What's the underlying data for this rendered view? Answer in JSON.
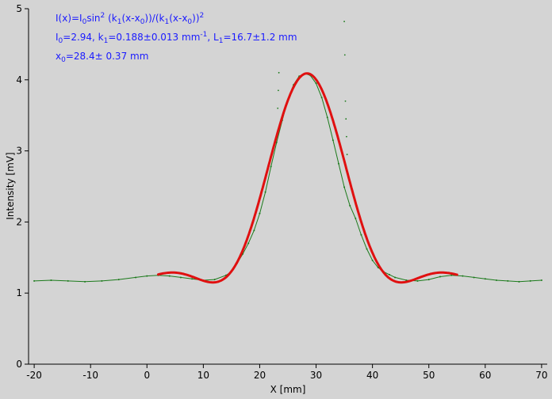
{
  "chart_data": {
    "type": "scatter",
    "title": "",
    "xlabel": "X [mm]",
    "ylabel": "Intensity [mV]",
    "xlim": [
      -21,
      71
    ],
    "ylim": [
      0,
      5
    ],
    "xticks": [
      -20,
      -10,
      0,
      10,
      20,
      30,
      40,
      50,
      60,
      70
    ],
    "yticks": [
      0,
      1,
      2,
      3,
      4,
      5
    ],
    "xtick_labels": [
      "-20",
      "-10",
      "0",
      "10",
      "20",
      "30",
      "40",
      "50",
      "60",
      "70"
    ],
    "ytick_labels": [
      "0",
      "1",
      "2",
      "3",
      "4",
      "5"
    ],
    "grid": false,
    "legend": "none",
    "annotation": {
      "line1": {
        "a": "I(x)=I",
        "a_sub": "0",
        "b": "sin",
        "b_sup": "2",
        "c": " (k",
        "c_sub": "1",
        "d": "(x-x",
        "d_sub": "0",
        "e": "))/(k",
        "e_sub": "1",
        "f": "(x-x",
        "f_sub": "0",
        "g": "))",
        "g_sup": "2"
      },
      "line2": {
        "a": "I",
        "a_sub": "0",
        "b": "=2.94,  k",
        "b_sub": "1",
        "c": "=0.188±0.013 mm",
        "c_sup": "-1",
        "d": ",   L",
        "d_sub": "1",
        "e": "=16.7±1.2 mm"
      },
      "line3": {
        "a": "x",
        "a_sub": "0",
        "b": "=28.4±  0.37 mm"
      }
    },
    "series": [
      {
        "kind": "measured",
        "color": "#1b7a1b",
        "x": [
          -20,
          -17,
          -14,
          -11,
          -8,
          -5,
          -2,
          0,
          2,
          4,
          6,
          8,
          10,
          12,
          14,
          15,
          16,
          17,
          18,
          19,
          20,
          21,
          22,
          23,
          24,
          25,
          26,
          27,
          28,
          29,
          30,
          31,
          32,
          33,
          34,
          35,
          36,
          37,
          38,
          39,
          40,
          41,
          42,
          43,
          44,
          46,
          48,
          50,
          52,
          54,
          56,
          58,
          60,
          62,
          64,
          66,
          68,
          70
        ],
        "y": [
          1.17,
          1.18,
          1.17,
          1.16,
          1.17,
          1.19,
          1.22,
          1.24,
          1.25,
          1.24,
          1.22,
          1.2,
          1.18,
          1.19,
          1.25,
          1.3,
          1.42,
          1.55,
          1.7,
          1.88,
          2.12,
          2.42,
          2.78,
          3.12,
          3.43,
          3.72,
          3.93,
          4.05,
          4.09,
          4.06,
          3.95,
          3.75,
          3.47,
          3.15,
          2.82,
          2.49,
          2.23,
          2.05,
          1.82,
          1.62,
          1.46,
          1.36,
          1.3,
          1.26,
          1.22,
          1.18,
          1.17,
          1.19,
          1.23,
          1.25,
          1.24,
          1.22,
          1.2,
          1.18,
          1.17,
          1.16,
          1.17,
          1.18
        ]
      },
      {
        "kind": "measured-outliers",
        "color": "#1b7a1b",
        "x": [
          23.2,
          23.3,
          23.4,
          35,
          35.1,
          35.2,
          35.3,
          35.4,
          35.5
        ],
        "y": [
          3.6,
          3.85,
          4.1,
          4.82,
          4.35,
          3.7,
          3.45,
          3.2,
          2.95
        ]
      },
      {
        "kind": "fit",
        "color": "#e01010",
        "x0": 28.4,
        "k1": 0.188,
        "I0": 2.94,
        "baseline": 1.15,
        "x_range": [
          2,
          55
        ]
      }
    ]
  }
}
